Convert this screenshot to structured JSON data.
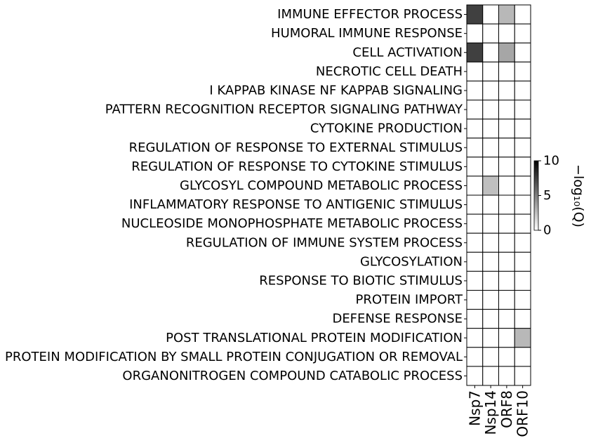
{
  "chart_data": {
    "type": "heatmap",
    "rows": [
      "IMMUNE EFFECTOR PROCESS",
      "HUMORAL IMMUNE RESPONSE",
      "CELL ACTIVATION",
      "NECROTIC CELL DEATH",
      "I KAPPAB KINASE NF KAPPAB SIGNALING",
      "PATTERN RECOGNITION RECEPTOR SIGNALING PATHWAY",
      "CYTOKINE PRODUCTION",
      "REGULATION OF RESPONSE TO EXTERNAL STIMULUS",
      "REGULATION OF RESPONSE TO CYTOKINE STIMULUS",
      "GLYCOSYL COMPOUND METABOLIC PROCESS",
      "INFLAMMATORY RESPONSE TO ANTIGENIC STIMULUS",
      "NUCLEOSIDE MONOPHOSPHATE METABOLIC PROCESS",
      "REGULATION OF IMMUNE SYSTEM PROCESS",
      "GLYCOSYLATION",
      "RESPONSE TO BIOTIC STIMULUS",
      "PROTEIN IMPORT",
      "DEFENSE RESPONSE",
      "POST TRANSLATIONAL PROTEIN MODIFICATION",
      "PROTEIN MODIFICATION BY SMALL PROTEIN CONJUGATION OR REMOVAL",
      "ORGANONITROGEN COMPOUND CATABOLIC PROCESS"
    ],
    "columns": [
      "Nsp7",
      "Nsp14",
      "ORF8",
      "ORF10"
    ],
    "values": [
      [
        7.5,
        0,
        2.8,
        0
      ],
      [
        0,
        0,
        0,
        0
      ],
      [
        7.5,
        0,
        3.5,
        0
      ],
      [
        0,
        0,
        0,
        0
      ],
      [
        0,
        0,
        0,
        0
      ],
      [
        0,
        0,
        0,
        0
      ],
      [
        0,
        0,
        0,
        0
      ],
      [
        0,
        0,
        0,
        0
      ],
      [
        0,
        0,
        0,
        0
      ],
      [
        0,
        2.5,
        0,
        0
      ],
      [
        0,
        0,
        0,
        0
      ],
      [
        0,
        0,
        0,
        0
      ],
      [
        0,
        0,
        0,
        0
      ],
      [
        0,
        0,
        0,
        0
      ],
      [
        0,
        0,
        0,
        0
      ],
      [
        0,
        0,
        0,
        0
      ],
      [
        0,
        0,
        0,
        0
      ],
      [
        0,
        0,
        0,
        2.8
      ],
      [
        0,
        0,
        0,
        0
      ],
      [
        0,
        0,
        0,
        0
      ]
    ],
    "colorbar": {
      "label": "−log₁₀(Q)",
      "range": [
        0,
        10
      ],
      "ticks": [
        "0",
        "5",
        "10"
      ],
      "low_color": "#ffffff",
      "high_color": "#000000"
    }
  }
}
